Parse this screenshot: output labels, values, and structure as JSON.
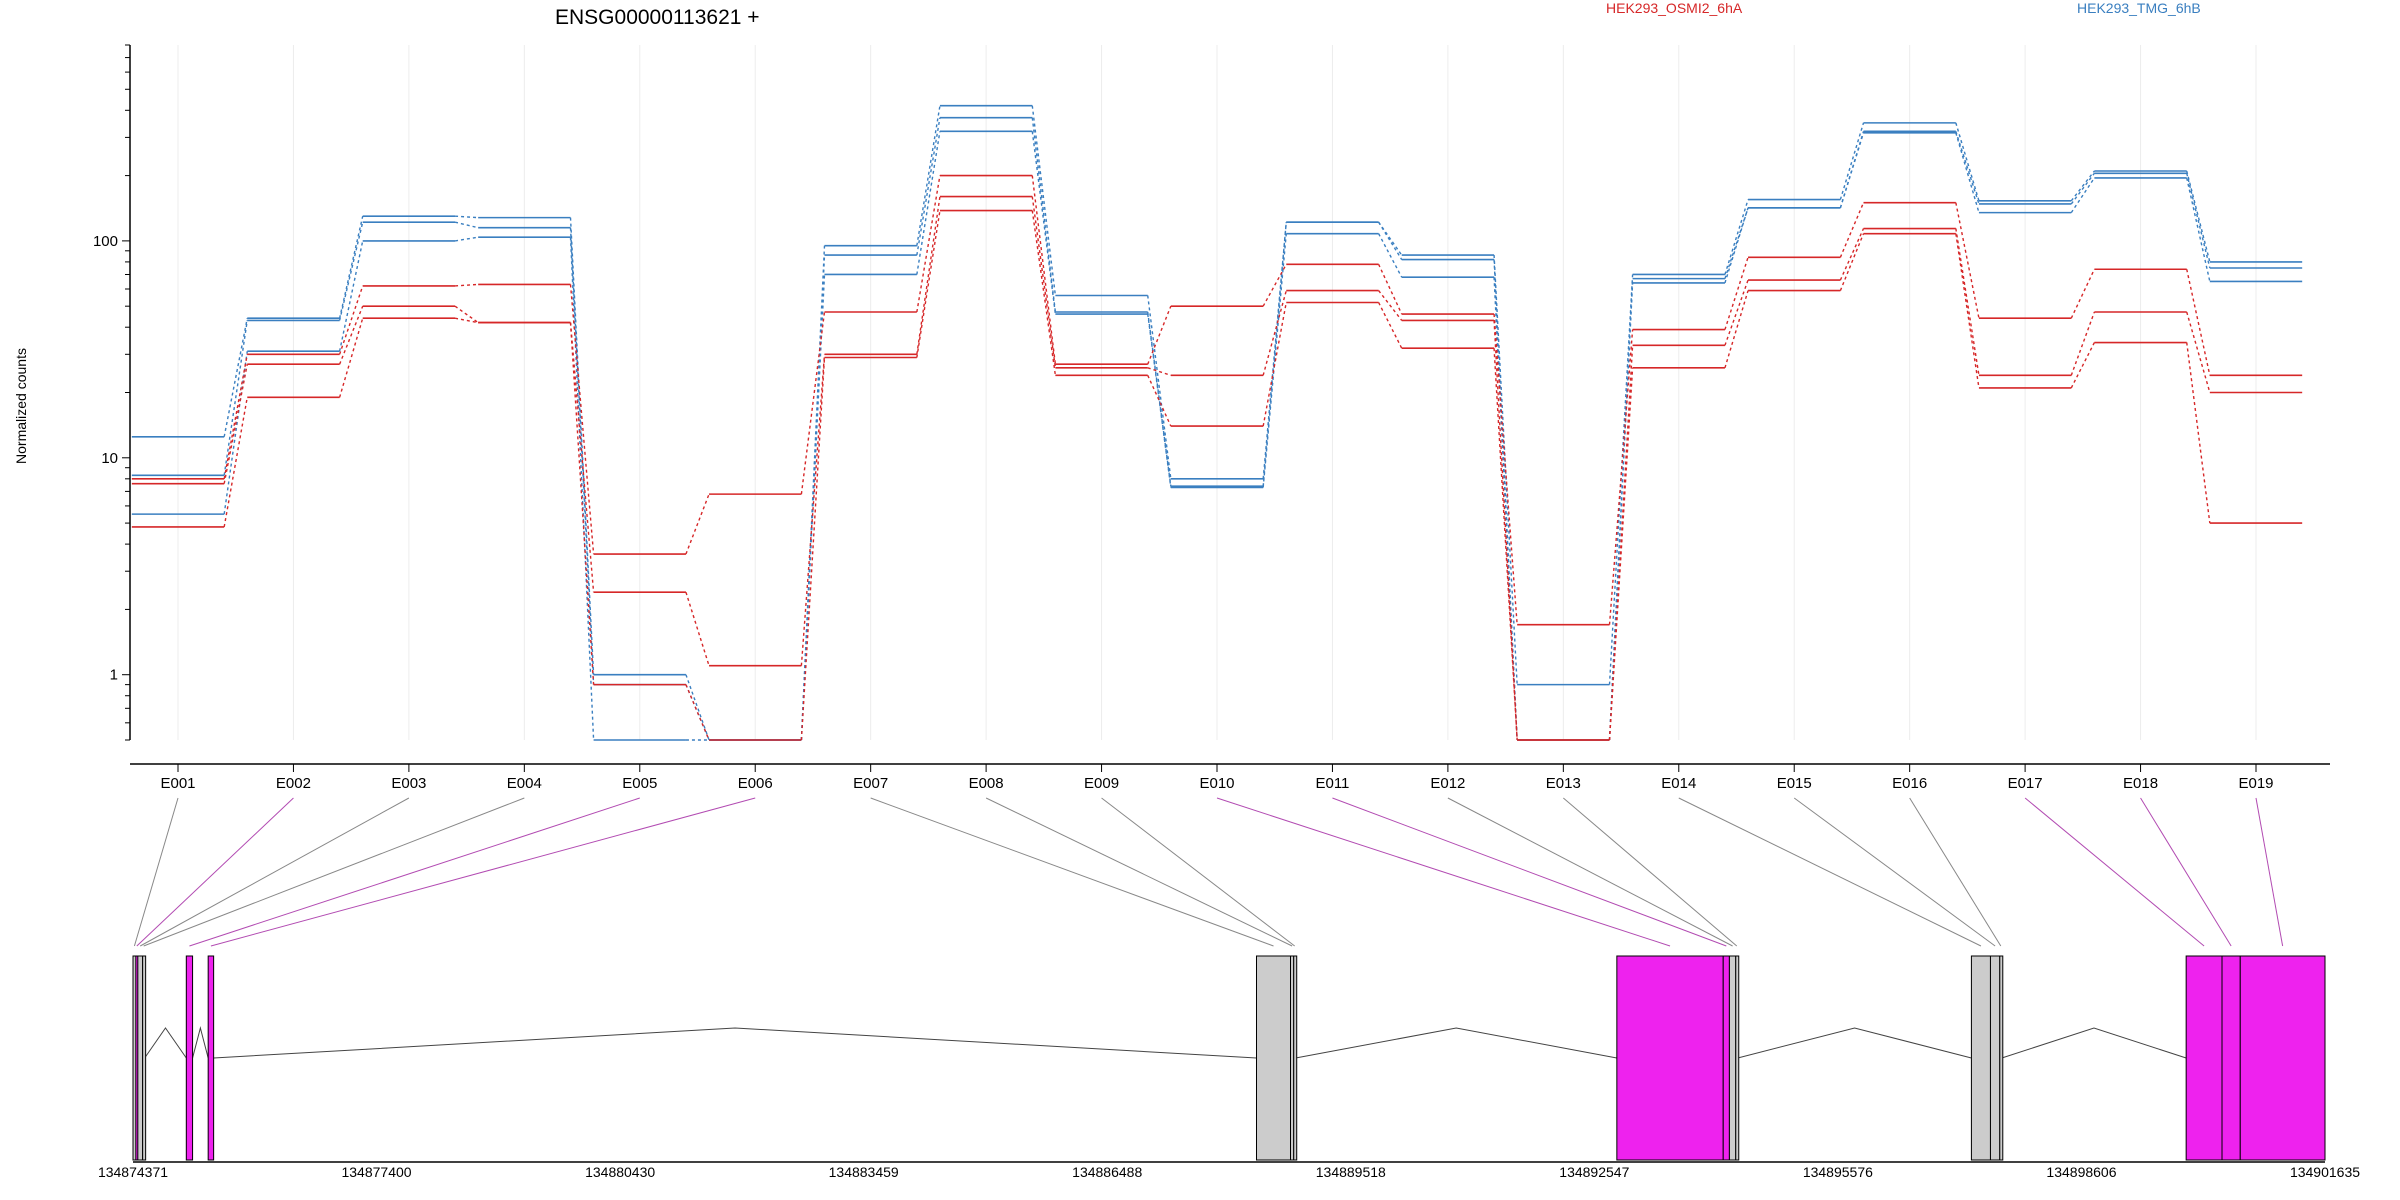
{
  "title": "ENSG00000113621 +",
  "legend": [
    {
      "name": "HEK293_OSMI2_6hA",
      "color": "#d62728"
    },
    {
      "name": "HEK293_TMG_6hB",
      "color": "#3a7fc0"
    }
  ],
  "colors": {
    "red": "#d62728",
    "blue": "#3a7fc0",
    "highlight": "#ee22ee",
    "gray": "#cccccc"
  },
  "chart_data": {
    "type": "line",
    "ylabel": "Normalized counts",
    "yscale": "log",
    "ylim": [
      0.5,
      800
    ],
    "yticks": [
      1,
      10,
      100
    ],
    "ytick_labels": [
      "1",
      "10",
      "100"
    ],
    "categories": [
      "E001",
      "E002",
      "E003",
      "E004",
      "E005",
      "E006",
      "E007",
      "E008",
      "E009",
      "E010",
      "E011",
      "E012",
      "E013",
      "E014",
      "E015",
      "E016",
      "E017",
      "E018",
      "E019"
    ],
    "highlighted_exons": [
      "E002",
      "E005",
      "E006",
      "E010",
      "E011",
      "E017",
      "E018",
      "E019"
    ],
    "series": [
      {
        "group": "HEK293_TMG_6hB",
        "values": [
          12.5,
          44,
          130,
          128,
          1.0,
          0.5,
          95,
          420,
          56,
          8.0,
          122,
          86,
          0.9,
          70,
          155,
          350,
          153,
          210,
          80
        ]
      },
      {
        "group": "HEK293_TMG_6hB",
        "values": [
          8.3,
          43,
          122,
          115,
          0.9,
          0.5,
          86,
          370,
          47,
          7.4,
          122,
          82,
          0.5,
          67,
          142,
          320,
          148,
          205,
          75
        ]
      },
      {
        "group": "HEK293_TMG_6hB",
        "values": [
          5.5,
          31,
          100,
          104,
          0.5,
          0.5,
          70,
          320,
          46,
          7.3,
          108,
          68,
          0.5,
          64,
          142,
          315,
          135,
          195,
          65
        ]
      },
      {
        "group": "HEK293_OSMI2_6hA",
        "values": [
          8.0,
          30,
          62,
          63,
          3.6,
          6.8,
          47,
          200,
          27,
          50,
          78,
          46,
          1.7,
          39,
          84,
          150,
          44,
          74,
          24
        ]
      },
      {
        "group": "HEK293_OSMI2_6hA",
        "values": [
          7.6,
          27,
          50,
          42,
          2.4,
          1.1,
          30,
          160,
          26,
          24,
          59,
          43,
          0.5,
          33,
          66,
          114,
          24,
          47,
          20
        ]
      },
      {
        "group": "HEK293_OSMI2_6hA",
        "values": [
          4.8,
          19,
          44,
          42,
          0.9,
          0.5,
          29,
          138,
          24,
          14,
          52,
          32,
          0.5,
          26,
          59,
          108,
          21,
          34,
          5.0
        ]
      }
    ]
  },
  "gene_model": {
    "coord_labels": [
      "134874371",
      "134877400",
      "134880430",
      "134883459",
      "134886488",
      "134889518",
      "134892547",
      "134895576",
      "134898606",
      "134901635"
    ],
    "coord_values": [
      134874371,
      134877400,
      134880430,
      134883459,
      134886488,
      134889518,
      134892547,
      134895576,
      134898606,
      134901635
    ],
    "range": [
      134874371,
      134901635
    ],
    "exon_parts": [
      {
        "id": "E001",
        "start": 134874371,
        "end": 134874406
      },
      {
        "id": "E002",
        "start": 134874406,
        "end": 134874431
      },
      {
        "id": "E003",
        "start": 134874431,
        "end": 134874491
      },
      {
        "id": "E004",
        "start": 134874491,
        "end": 134874516
      },
      {
        "id": "E005",
        "start": 134875034,
        "end": 134875112
      },
      {
        "id": "E006",
        "start": 134875306,
        "end": 134875374
      },
      {
        "id": "E007",
        "start": 134888345,
        "end": 134888768
      },
      {
        "id": "E008",
        "start": 134888768,
        "end": 134888808
      },
      {
        "id": "E009",
        "start": 134888808,
        "end": 134888832
      },
      {
        "id": "E010",
        "start": 134892827,
        "end": 134894150
      },
      {
        "id": "E011",
        "start": 134894150,
        "end": 134894227
      },
      {
        "id": "E012",
        "start": 134894227,
        "end": 134894306
      },
      {
        "id": "E013",
        "start": 134894306,
        "end": 134894331
      },
      {
        "id": "E014",
        "start": 134897237,
        "end": 134897474
      },
      {
        "id": "E015",
        "start": 134897474,
        "end": 134897590
      },
      {
        "id": "E016",
        "start": 134897590,
        "end": 134897615
      },
      {
        "id": "E017",
        "start": 134899908,
        "end": 134900354
      },
      {
        "id": "E018",
        "start": 134900354,
        "end": 134900581
      },
      {
        "id": "E019",
        "start": 134900581,
        "end": 134901635
      }
    ],
    "introns": [
      {
        "start": 134874516,
        "end": 134875034
      },
      {
        "start": 134875112,
        "end": 134875306
      },
      {
        "start": 134875374,
        "end": 134888345
      },
      {
        "start": 134888832,
        "end": 134892827
      },
      {
        "start": 134894331,
        "end": 134897237
      },
      {
        "start": 134897615,
        "end": 134899908
      }
    ]
  }
}
